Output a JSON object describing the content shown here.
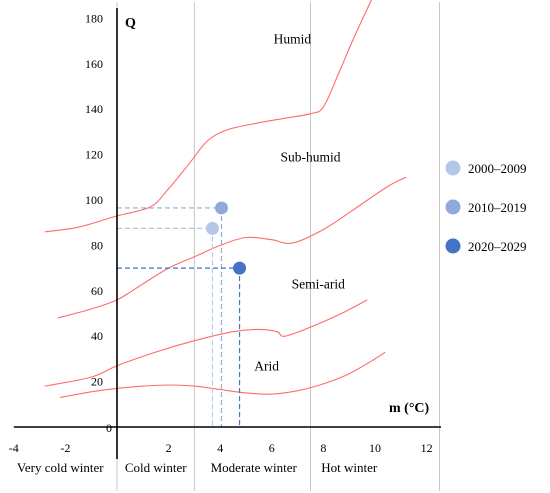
{
  "chart_data": {
    "type": "scatter",
    "xlabel": "m (°C)",
    "ylabel": "Q",
    "xlim": [
      -4,
      12
    ],
    "ylim": [
      0,
      180
    ],
    "x_ticks": [
      -4,
      -2,
      2,
      4,
      6,
      8,
      10,
      12
    ],
    "x_origin_label": "0",
    "y_ticks": [
      0,
      20,
      40,
      60,
      80,
      100,
      120,
      140,
      160,
      180
    ],
    "zone_boundaries": [
      0,
      3,
      7.5,
      12.5
    ],
    "zones": [
      {
        "label": "Very cold winter",
        "x": -2.2
      },
      {
        "label": "Cold winter",
        "x": 1.5
      },
      {
        "label": "Moderate winter",
        "x": 5.3
      },
      {
        "label": "Hot winter",
        "x": 9.0
      }
    ],
    "region_labels": [
      {
        "label": "Humid",
        "x": 6.8,
        "y": 169
      },
      {
        "label": "Sub-humid",
        "x": 7.5,
        "y": 117
      },
      {
        "label": "Semi-arid",
        "x": 7.8,
        "y": 61
      },
      {
        "label": "Arid",
        "x": 5.8,
        "y": 25
      }
    ],
    "boundary_curves": [
      {
        "name": "humid / sub-humid",
        "points": [
          [
            -2.8,
            86
          ],
          [
            -1.5,
            88
          ],
          [
            0,
            93
          ],
          [
            1.3,
            97
          ],
          [
            2,
            105
          ],
          [
            2.8,
            116
          ],
          [
            3.5,
            126
          ],
          [
            4.3,
            131
          ],
          [
            5.5,
            134
          ],
          [
            6.5,
            136
          ],
          [
            7.5,
            138
          ],
          [
            8,
            141
          ],
          [
            8.6,
            156
          ],
          [
            9.2,
            172
          ],
          [
            9.9,
            190
          ]
        ]
      },
      {
        "name": "sub-humid / semi-arid",
        "points": [
          [
            -2.3,
            48
          ],
          [
            -1,
            52
          ],
          [
            0,
            56
          ],
          [
            1,
            63
          ],
          [
            2,
            70
          ],
          [
            3,
            75
          ],
          [
            4,
            80
          ],
          [
            5,
            83.5
          ],
          [
            6,
            82.5
          ],
          [
            6.8,
            81
          ],
          [
            8,
            87
          ],
          [
            9.2,
            96
          ],
          [
            10.5,
            106
          ],
          [
            11.2,
            110
          ]
        ]
      },
      {
        "name": "semi-arid / arid",
        "points": [
          [
            -2.8,
            18
          ],
          [
            -1,
            22
          ],
          [
            0,
            27
          ],
          [
            1.5,
            33
          ],
          [
            3,
            38
          ],
          [
            4.5,
            42
          ],
          [
            5.5,
            43
          ],
          [
            6.2,
            42
          ],
          [
            6.5,
            40
          ],
          [
            7.5,
            44
          ],
          [
            8.7,
            50
          ],
          [
            9.7,
            56
          ]
        ]
      },
      {
        "name": "arid / lower",
        "points": [
          [
            -2.2,
            13
          ],
          [
            -1,
            15.5
          ],
          [
            0,
            17
          ],
          [
            1,
            18
          ],
          [
            2,
            18.5
          ],
          [
            3,
            18
          ],
          [
            4,
            16.5
          ],
          [
            5,
            15
          ],
          [
            6,
            14.5
          ],
          [
            7,
            16
          ],
          [
            8,
            19
          ],
          [
            9,
            23.5
          ],
          [
            10,
            30
          ],
          [
            10.4,
            33
          ]
        ]
      }
    ],
    "series": [
      {
        "name": "2000–2009",
        "x": 3.7,
        "y": 87.5,
        "color": "#b4c7e7"
      },
      {
        "name": "2010–2019",
        "x": 4.05,
        "y": 96.5,
        "color": "#8eaadb"
      },
      {
        "name": "2020–2029",
        "x": 4.75,
        "y": 70,
        "color": "#4472c4"
      }
    ],
    "curve_color": "#ff6b6b",
    "grid_color": "#c8c8c8",
    "legend_position": "right"
  }
}
